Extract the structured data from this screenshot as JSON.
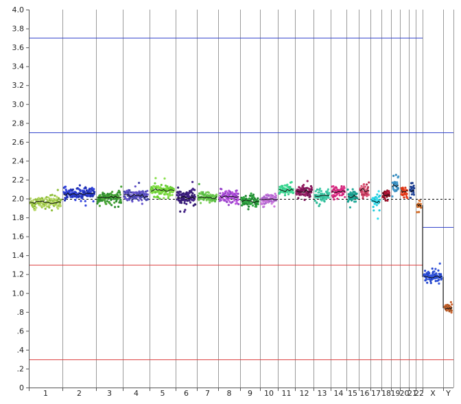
{
  "chart_data": {
    "type": "scatter",
    "title": "",
    "xlabel": "",
    "ylabel": "",
    "ylim": [
      0,
      4.0
    ],
    "y_ticks": [
      {
        "value": 0,
        "label": "0"
      },
      {
        "value": 0.2,
        "label": ".2"
      },
      {
        "value": 0.4,
        "label": ".4"
      },
      {
        "value": 0.6,
        "label": ".6"
      },
      {
        "value": 0.8,
        "label": ".8"
      },
      {
        "value": 1.0,
        "label": "1.0"
      },
      {
        "value": 1.2,
        "label": "1.2"
      },
      {
        "value": 1.4,
        "label": "1.4"
      },
      {
        "value": 1.6,
        "label": "1.6"
      },
      {
        "value": 1.8,
        "label": "1.8"
      },
      {
        "value": 2.0,
        "label": "2.0"
      },
      {
        "value": 2.2,
        "label": "2.2"
      },
      {
        "value": 2.4,
        "label": "2.4"
      },
      {
        "value": 2.6,
        "label": "2.6"
      },
      {
        "value": 2.8,
        "label": "2.8"
      },
      {
        "value": 3.0,
        "label": "3.0"
      },
      {
        "value": 3.2,
        "label": "3.2"
      },
      {
        "value": 3.4,
        "label": "3.4"
      },
      {
        "value": 3.6,
        "label": "3.6"
      },
      {
        "value": 3.8,
        "label": "3.8"
      },
      {
        "value": 4.0,
        "label": "4.0"
      }
    ],
    "grid": "vertical chromosome boundaries",
    "reference_line": {
      "value": 2.0,
      "style": "dashed",
      "color": "#000000"
    },
    "threshold_lines": [
      {
        "value": 3.7,
        "color": "#3344cc",
        "extent": "autosomes"
      },
      {
        "value": 2.7,
        "color": "#3344cc",
        "extent": "all"
      },
      {
        "value": 1.7,
        "color": "#3344cc",
        "extent": "sex chromosomes"
      },
      {
        "value": 1.3,
        "color": "#dd4444",
        "extent": "autosomes"
      },
      {
        "value": 0.3,
        "color": "#dd4444",
        "extent": "all"
      }
    ],
    "chromosomes": [
      {
        "label": "1",
        "mean": 1.96,
        "spread": 0.03,
        "colors": [
          "#b9d96a",
          "#8fbf3a"
        ]
      },
      {
        "label": "2",
        "mean": 2.05,
        "spread": 0.03,
        "colors": [
          "#3344dd",
          "#1f2fb0"
        ]
      },
      {
        "label": "3",
        "mean": 2.01,
        "spread": 0.03,
        "colors": [
          "#2f8f2f",
          "#4ea83a"
        ]
      },
      {
        "label": "4",
        "mean": 2.03,
        "spread": 0.03,
        "colors": [
          "#6655cc",
          "#4444aa"
        ]
      },
      {
        "label": "5",
        "mean": 2.09,
        "spread": 0.03,
        "colors": [
          "#88e04a",
          "#66cc33"
        ]
      },
      {
        "label": "6",
        "mean": 2.01,
        "spread": 0.04,
        "colors": [
          "#442288",
          "#331a70"
        ]
      },
      {
        "label": "7",
        "mean": 2.01,
        "spread": 0.03,
        "colors": [
          "#55bb44",
          "#77cc55"
        ]
      },
      {
        "label": "8",
        "mean": 2.02,
        "spread": 0.03,
        "colors": [
          "#bb55dd",
          "#9944cc"
        ]
      },
      {
        "label": "9",
        "mean": 1.97,
        "spread": 0.03,
        "colors": [
          "#228833",
          "#33aa44"
        ]
      },
      {
        "label": "10",
        "mean": 1.99,
        "spread": 0.03,
        "colors": [
          "#cc77dd",
          "#aa66cc"
        ]
      },
      {
        "label": "11",
        "mean": 2.09,
        "spread": 0.03,
        "colors": [
          "#44dd99",
          "#33cc88"
        ]
      },
      {
        "label": "12",
        "mean": 2.08,
        "spread": 0.03,
        "colors": [
          "#992266",
          "#771155"
        ]
      },
      {
        "label": "13",
        "mean": 2.03,
        "spread": 0.03,
        "colors": [
          "#44ccaa",
          "#33bb99"
        ]
      },
      {
        "label": "14",
        "mean": 2.07,
        "spread": 0.03,
        "colors": [
          "#dd3388",
          "#cc2277"
        ]
      },
      {
        "label": "15",
        "mean": 2.02,
        "spread": 0.03,
        "colors": [
          "#119988",
          "#22aa99"
        ]
      },
      {
        "label": "16",
        "mean": 2.09,
        "spread": 0.04,
        "colors": [
          "#dd5577",
          "#bb3355"
        ]
      },
      {
        "label": "17",
        "mean": 1.97,
        "spread": 0.04,
        "colors": [
          "#33ddee",
          "#22ccdd"
        ]
      },
      {
        "label": "18",
        "mean": 2.04,
        "spread": 0.03,
        "colors": [
          "#aa1133",
          "#881122"
        ]
      },
      {
        "label": "19",
        "mean": 2.13,
        "spread": 0.04,
        "colors": [
          "#4499cc",
          "#3388bb"
        ]
      },
      {
        "label": "20",
        "mean": 2.08,
        "spread": 0.03,
        "colors": [
          "#ee4422",
          "#dd3311"
        ]
      },
      {
        "label": "21",
        "mean": 2.08,
        "spread": 0.03,
        "colors": [
          "#224499",
          "#113388"
        ]
      },
      {
        "label": "22",
        "mean": 1.93,
        "spread": 0.03,
        "colors": [
          "#dd7733",
          "#cc6622"
        ]
      },
      {
        "label": "X",
        "mean": 1.17,
        "spread": 0.03,
        "colors": [
          "#3355dd",
          "#2244cc"
        ]
      },
      {
        "label": "Y",
        "mean": 0.84,
        "spread": 0.02,
        "colors": [
          "#cc6633",
          "#aa5522"
        ]
      }
    ]
  }
}
